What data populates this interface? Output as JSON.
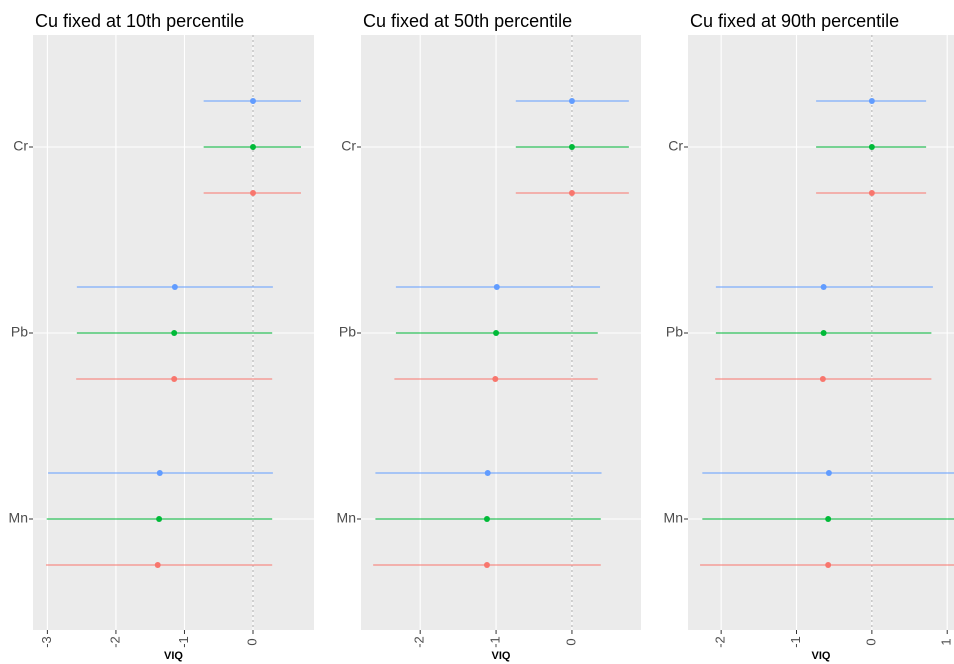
{
  "chart_data": [
    {
      "type": "interval",
      "title": "Cu fixed at 10th percentile",
      "xlabel": "VIQ",
      "categories": [
        "Cr",
        "Pb",
        "Mn"
      ],
      "xlim": [
        -3.21,
        0.89
      ],
      "xticks": [
        -3,
        -2,
        -1,
        0
      ],
      "grid": true,
      "refline": 0,
      "series": [
        {
          "color": "#F8766D",
          "values": [
            0,
            -1.15,
            -1.39
          ],
          "lower": [
            -0.72,
            -2.58,
            -3.02
          ],
          "upper": [
            0.7,
            0.28,
            0.28
          ]
        },
        {
          "color": "#00BA38",
          "values": [
            0,
            -1.15,
            -1.37
          ],
          "lower": [
            -0.72,
            -2.57,
            -3.01
          ],
          "upper": [
            0.7,
            0.28,
            0.28
          ]
        },
        {
          "color": "#619CFF",
          "values": [
            0,
            -1.14,
            -1.36
          ],
          "lower": [
            -0.72,
            -2.57,
            -2.99
          ],
          "upper": [
            0.7,
            0.29,
            0.29
          ]
        }
      ]
    },
    {
      "type": "interval",
      "title": "Cu fixed at 50th percentile",
      "xlabel": "VIQ",
      "categories": [
        "Cr",
        "Pb",
        "Mn"
      ],
      "xlim": [
        -2.78,
        0.91
      ],
      "xticks": [
        -2,
        -1,
        0
      ],
      "grid": true,
      "refline": 0,
      "series": [
        {
          "color": "#F8766D",
          "values": [
            0,
            -1.01,
            -1.12
          ],
          "lower": [
            -0.74,
            -2.34,
            -2.62
          ],
          "upper": [
            0.75,
            0.34,
            0.38
          ]
        },
        {
          "color": "#00BA38",
          "values": [
            0,
            -1.0,
            -1.12
          ],
          "lower": [
            -0.74,
            -2.32,
            -2.59
          ],
          "upper": [
            0.75,
            0.34,
            0.38
          ]
        },
        {
          "color": "#619CFF",
          "values": [
            0,
            -0.99,
            -1.11
          ],
          "lower": [
            -0.74,
            -2.32,
            -2.59
          ],
          "upper": [
            0.75,
            0.37,
            0.39
          ]
        }
      ]
    },
    {
      "type": "interval",
      "title": "Cu fixed at 90th percentile",
      "xlabel": "VIQ",
      "categories": [
        "Cr",
        "Pb",
        "Mn"
      ],
      "xlim": [
        -2.44,
        1.09
      ],
      "xticks": [
        -2,
        -1,
        0,
        1
      ],
      "grid": true,
      "refline": 0,
      "series": [
        {
          "color": "#F8766D",
          "values": [
            0,
            -0.65,
            -0.58
          ],
          "lower": [
            -0.74,
            -2.08,
            -2.28
          ],
          "upper": [
            0.72,
            0.79,
            1.2
          ]
        },
        {
          "color": "#00BA38",
          "values": [
            0,
            -0.64,
            -0.58
          ],
          "lower": [
            -0.74,
            -2.07,
            -2.25
          ],
          "upper": [
            0.72,
            0.79,
            1.2
          ]
        },
        {
          "color": "#619CFF",
          "values": [
            0,
            -0.64,
            -0.57
          ],
          "lower": [
            -0.74,
            -2.07,
            -2.25
          ],
          "upper": [
            0.72,
            0.81,
            1.2
          ]
        }
      ]
    }
  ]
}
